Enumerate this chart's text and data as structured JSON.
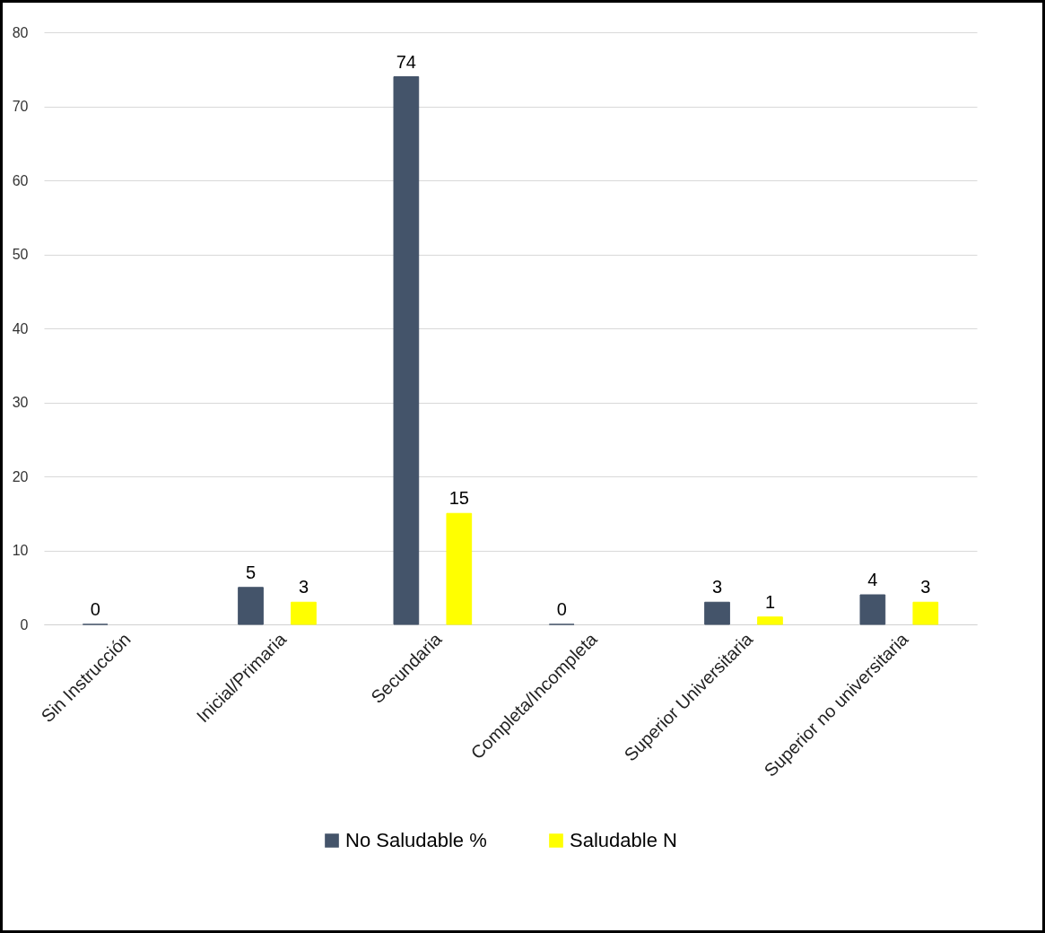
{
  "chart_data": {
    "type": "bar",
    "categories": [
      "Sin Instrucción",
      "Inicial/Primaria",
      "Secundaria",
      "Completa/Incompleta",
      "Superior Universitaria",
      "Superior no universitaria"
    ],
    "series": [
      {
        "name": "No Saludable  %",
        "color": "#44546a",
        "values": [
          0,
          5,
          74,
          0,
          3,
          4
        ]
      },
      {
        "name": "Saludable   N",
        "color": "#ffff00",
        "values": [
          null,
          3,
          15,
          null,
          1,
          3
        ]
      }
    ],
    "ylim": [
      0,
      80
    ],
    "yticks": [
      0,
      10,
      20,
      30,
      40,
      50,
      60,
      70,
      80
    ],
    "grid": "y",
    "legend": "bottom",
    "data_labels": true
  }
}
